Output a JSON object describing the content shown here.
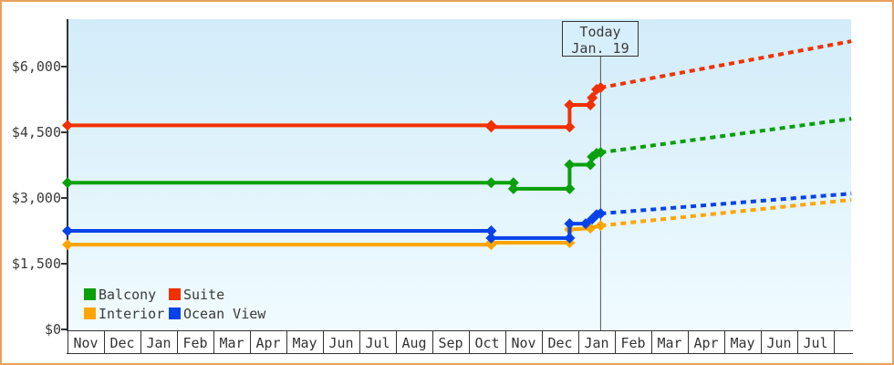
{
  "window": {
    "border_color": "#e8a25c",
    "background": "#ffffff"
  },
  "chart_data": {
    "type": "line",
    "title": "",
    "plot_background": {
      "top": "#d2ecf9",
      "bottom": "#f0fbff"
    },
    "axis_color": "#333333",
    "label_color": "#3a3a3a",
    "y_axis": {
      "range": [
        0,
        7080
      ],
      "ticks": [
        {
          "value": 0,
          "label": "$0"
        },
        {
          "value": 1500,
          "label": "$1,500"
        },
        {
          "value": 3000,
          "label": "$3,000"
        },
        {
          "value": 4500,
          "label": "$4,500"
        },
        {
          "value": 6000,
          "label": "$6,000"
        }
      ]
    },
    "x_axis": {
      "months": [
        "Nov",
        "Dec",
        "Jan",
        "Feb",
        "Mar",
        "Apr",
        "May",
        "Jun",
        "Jul",
        "Aug",
        "Sep",
        "Oct",
        "Nov",
        "Dec",
        "Jan",
        "Feb",
        "Mar",
        "Apr",
        "May",
        "Jun",
        "Jul"
      ]
    },
    "today": {
      "line1": "Today",
      "line2": "Jan. 19",
      "position_months": 14.61,
      "line_color": "#555555"
    },
    "series": [
      {
        "name": "Suite",
        "color": "#f23000",
        "solid": [
          [
            0,
            4660
          ],
          [
            11.61,
            4660
          ],
          [
            11.61,
            4620
          ],
          [
            13.76,
            4620
          ],
          [
            13.76,
            5125
          ],
          [
            14.33,
            5125
          ],
          [
            14.38,
            5290
          ],
          [
            14.5,
            5480
          ],
          [
            14.61,
            5520
          ]
        ],
        "forecast": [
          [
            14.61,
            5520
          ],
          [
            21.48,
            6580
          ]
        ]
      },
      {
        "name": "Balcony",
        "color": "#09a009",
        "solid": [
          [
            0,
            3350
          ],
          [
            11.61,
            3350
          ],
          [
            12.22,
            3350
          ],
          [
            12.22,
            3210
          ],
          [
            13.76,
            3210
          ],
          [
            13.76,
            3760
          ],
          [
            14.33,
            3760
          ],
          [
            14.38,
            3940
          ],
          [
            14.5,
            4020
          ],
          [
            14.61,
            4040
          ]
        ],
        "forecast": [
          [
            14.61,
            4040
          ],
          [
            21.48,
            4810
          ]
        ]
      },
      {
        "name": "Interior",
        "color": "#ffa500",
        "solid": [
          [
            0,
            1935
          ],
          [
            11.61,
            1935
          ],
          [
            11.61,
            1980
          ],
          [
            13.76,
            1980
          ],
          [
            13.76,
            2280
          ],
          [
            14.33,
            2310
          ],
          [
            14.61,
            2370
          ]
        ],
        "forecast": [
          [
            14.61,
            2370
          ],
          [
            21.48,
            2960
          ]
        ]
      },
      {
        "name": "Ocean View",
        "color": "#0742e8",
        "solid": [
          [
            0,
            2250
          ],
          [
            11.61,
            2250
          ],
          [
            11.61,
            2085
          ],
          [
            13.76,
            2085
          ],
          [
            13.76,
            2415
          ],
          [
            14.2,
            2415
          ],
          [
            14.38,
            2520
          ],
          [
            14.5,
            2620
          ],
          [
            14.61,
            2645
          ]
        ],
        "forecast": [
          [
            14.61,
            2645
          ],
          [
            21.48,
            3100
          ]
        ]
      }
    ],
    "legend": [
      {
        "label": "Balcony",
        "color": "#09a009"
      },
      {
        "label": "Suite",
        "color": "#f23000"
      },
      {
        "label": "Interior",
        "color": "#ffa500"
      },
      {
        "label": "Ocean View",
        "color": "#0742e8"
      }
    ]
  }
}
